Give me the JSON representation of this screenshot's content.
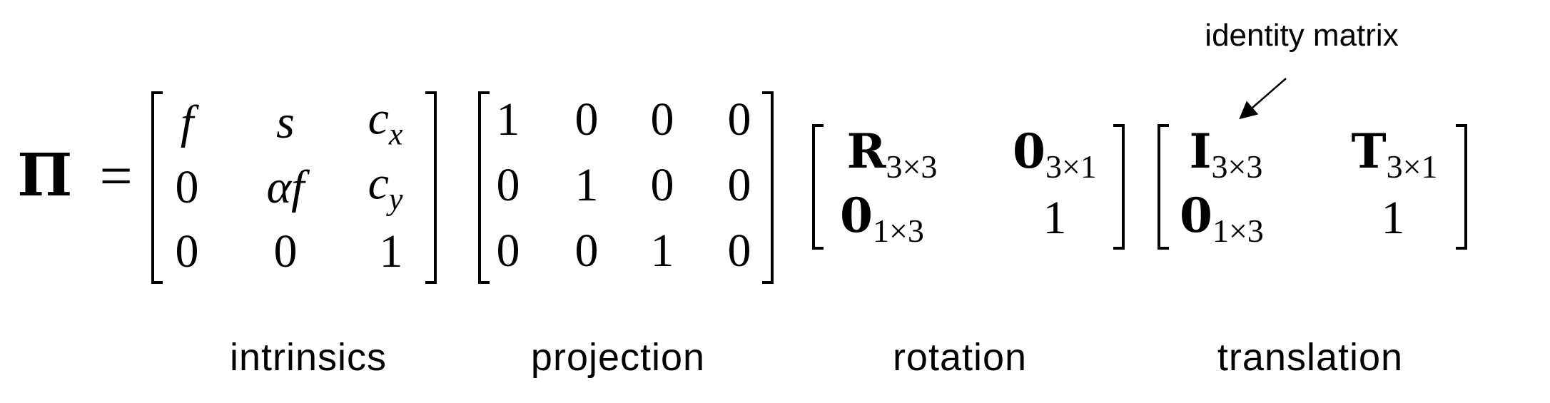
{
  "equation": {
    "lhs_symbol": "Π",
    "equals": "=",
    "intrinsics": {
      "r1": [
        "f",
        "s",
        "c",
        "x"
      ],
      "r2": [
        "0",
        "αf",
        "c",
        "y"
      ],
      "r3": [
        "0",
        "0",
        "1"
      ]
    },
    "projection": {
      "r1": [
        "1",
        "0",
        "0",
        "0"
      ],
      "r2": [
        "0",
        "1",
        "0",
        "0"
      ],
      "r3": [
        "0",
        "0",
        "1",
        "0"
      ]
    },
    "rotation": {
      "R": "R",
      "R_sub": "3×3",
      "z1": "0",
      "z1_sub": "3×1",
      "z2": "0",
      "z2_sub": "1×3",
      "one": "1"
    },
    "translation": {
      "I": "I",
      "I_sub": "3×3",
      "T": "T",
      "T_sub": "3×1",
      "z": "0",
      "z_sub": "1×3",
      "one": "1"
    }
  },
  "labels": {
    "intrinsics": "intrinsics",
    "projection": "projection",
    "rotation": "rotation",
    "translation": "translation"
  },
  "annotation": {
    "text": "identity matrix"
  }
}
